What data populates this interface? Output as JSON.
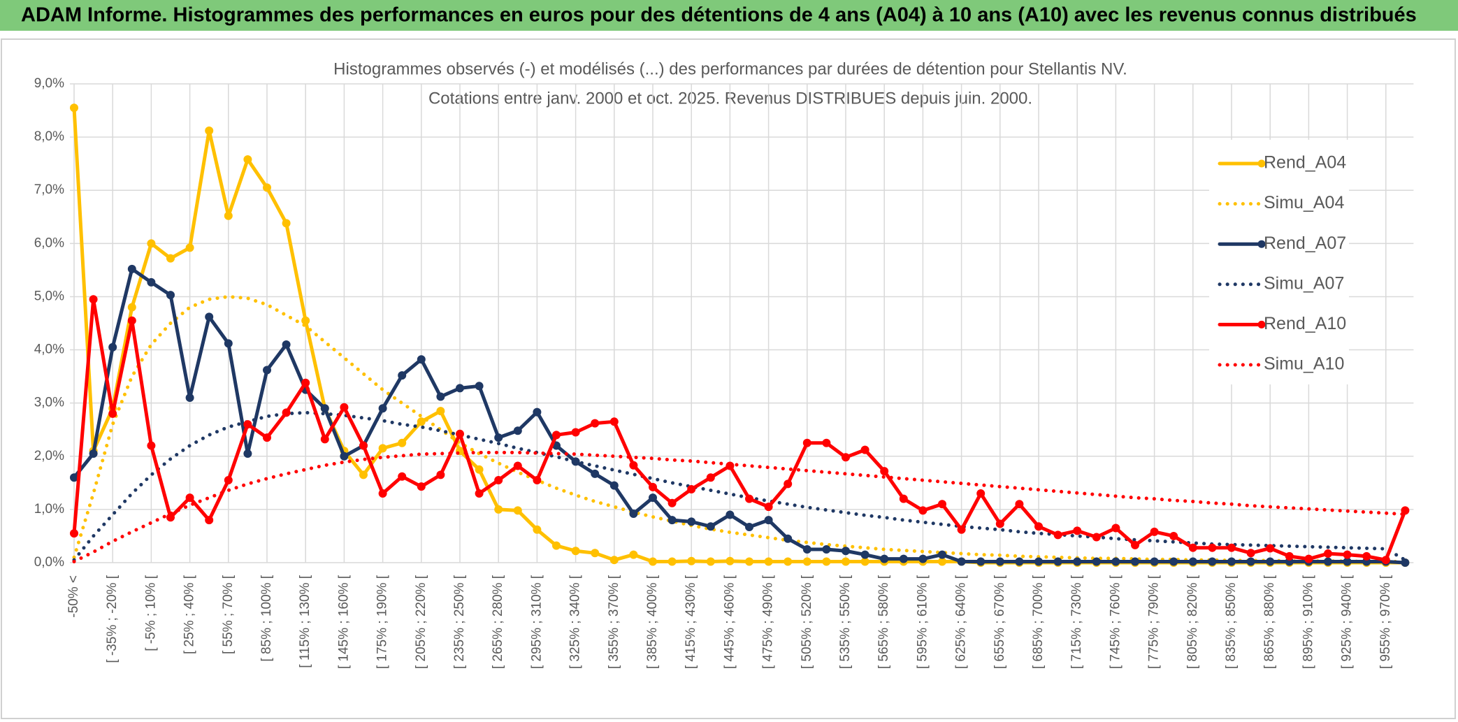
{
  "chart_data": {
    "type": "line",
    "header": "ADAM Informe. Histogrammes des performances en euros pour des détentions de 4 ans (A04) à 10 ans (A10) avec les revenus connus distribués",
    "title": "Histogrammes observés (-) et modélisés (...) des performances par durées de détention pour Stellantis NV.",
    "subtitle": "Cotations entre janv. 2000 et oct. 2025. Revenus DISTRIBUES depuis juin. 2000.",
    "categories": [
      "-50% <",
      null,
      "[ -35% ; -20% [",
      null,
      "[ -5% ; 10% [",
      null,
      "[ 25% ; 40% [",
      null,
      "[ 55% ; 70% [",
      null,
      "[ 85% ; 100% [",
      null,
      "[ 115% ; 130% [",
      null,
      "[ 145% ; 160% [",
      null,
      "[ 175% ; 190% [",
      null,
      "[ 205% ; 220% [",
      null,
      "[ 235% ; 250% [",
      null,
      "[ 265% ; 280% [",
      null,
      "[ 295% ; 310% [",
      null,
      "[ 325% ; 340% [",
      null,
      "[ 355% ; 370% [",
      null,
      "[ 385% ; 400% [",
      null,
      "[ 415% ; 430% [",
      null,
      "[ 445% ; 460% [",
      null,
      "[ 475% ; 490% [",
      null,
      "[ 505% ; 520% [",
      null,
      "[ 535% ; 550% [",
      null,
      "[ 565% ; 580% [",
      null,
      "[ 595% ; 610% [",
      null,
      "[ 625% ; 640% [",
      null,
      "[ 655% ; 670% [",
      null,
      "[ 685% ; 700% [",
      null,
      "[ 715% ; 730% [",
      null,
      "[ 745% ; 760% [",
      null,
      "[ 775% ; 790% [",
      null,
      "[ 805% ; 820% [",
      null,
      "[ 835% ; 850% [",
      null,
      "[ 865% ; 880% [",
      null,
      "[ 895% ; 910% [",
      null,
      "[ 925% ; 940% [",
      null,
      "[ 955% ; 970% [",
      null
    ],
    "ylim": [
      0,
      9
    ],
    "yticks": [
      {
        "value": 0,
        "label": "0,0%"
      },
      {
        "value": 1,
        "label": "1,0%"
      },
      {
        "value": 2,
        "label": "2,0%"
      },
      {
        "value": 3,
        "label": "3,0%"
      },
      {
        "value": 4,
        "label": "4,0%"
      },
      {
        "value": 5,
        "label": "5,0%"
      },
      {
        "value": 6,
        "label": "6,0%"
      },
      {
        "value": 7,
        "label": "7,0%"
      },
      {
        "value": 8,
        "label": "8,0%"
      },
      {
        "value": 9,
        "label": "9,0%"
      }
    ],
    "grid": true,
    "legend": "right",
    "series": [
      {
        "name": "Rend_A04",
        "color": "#ffc000",
        "style": "solid",
        "markers": true,
        "values": [
          8.55,
          2.1,
          2.9,
          4.8,
          6.0,
          5.72,
          5.92,
          8.12,
          6.52,
          7.58,
          7.05,
          6.38,
          4.55,
          2.9,
          2.1,
          1.65,
          2.15,
          2.25,
          2.65,
          2.85,
          2.1,
          1.75,
          1.0,
          0.98,
          0.62,
          0.32,
          0.22,
          0.18,
          0.05,
          0.15,
          0.02,
          0.02,
          0.03,
          0.02,
          0.03,
          0.02,
          0.02,
          0.02,
          0.02,
          0.02,
          0.02,
          0.02,
          0.02,
          0.02,
          0.02,
          0.02,
          0.02,
          0,
          0,
          0,
          0,
          0,
          0,
          0,
          0,
          0,
          0,
          0,
          0,
          0,
          0,
          0,
          0,
          0,
          0,
          0,
          0,
          0,
          0,
          0
        ]
      },
      {
        "name": "Simu_A04",
        "color": "#ffc000",
        "style": "dotted",
        "markers": false,
        "values": [
          0.1,
          1.3,
          2.6,
          3.5,
          4.1,
          4.5,
          4.8,
          4.95,
          5.0,
          4.97,
          4.85,
          4.65,
          4.45,
          4.15,
          3.85,
          3.55,
          3.25,
          3.0,
          2.75,
          2.5,
          2.25,
          2.05,
          1.87,
          1.7,
          1.55,
          1.4,
          1.27,
          1.15,
          1.05,
          0.95,
          0.86,
          0.78,
          0.7,
          0.63,
          0.57,
          0.52,
          0.47,
          0.42,
          0.38,
          0.34,
          0.31,
          0.28,
          0.25,
          0.23,
          0.21,
          0.19,
          0.17,
          0.15,
          0.14,
          0.12,
          0.11,
          0.1,
          0.09,
          0.08,
          0.08,
          0.07,
          0.06,
          0.06,
          0.05,
          0.05,
          0.04,
          0.04,
          0.04,
          0.03,
          0.03,
          0.03,
          0.03,
          0.02,
          0.02,
          0.02
        ]
      },
      {
        "name": "Rend_A07",
        "color": "#1f3864",
        "style": "solid",
        "markers": true,
        "values": [
          1.6,
          2.05,
          4.05,
          5.52,
          5.27,
          5.03,
          3.1,
          4.62,
          4.12,
          2.05,
          3.62,
          4.1,
          3.25,
          2.9,
          2.0,
          2.2,
          2.9,
          3.52,
          3.82,
          3.12,
          3.28,
          3.32,
          2.35,
          2.48,
          2.83,
          2.2,
          1.9,
          1.67,
          1.45,
          0.92,
          1.22,
          0.8,
          0.77,
          0.68,
          0.9,
          0.67,
          0.8,
          0.45,
          0.25,
          0.25,
          0.22,
          0.15,
          0.07,
          0.07,
          0.07,
          0.15,
          0.02,
          0.02,
          0.02,
          0.02,
          0.02,
          0.02,
          0.02,
          0.02,
          0.02,
          0.02,
          0.02,
          0.02,
          0.02,
          0.02,
          0.02,
          0.02,
          0.02,
          0.02,
          0.02,
          0.02,
          0.02,
          0.02,
          0.02,
          0
        ]
      },
      {
        "name": "Simu_A07",
        "color": "#1f3864",
        "style": "dotted",
        "markers": false,
        "values": [
          0.05,
          0.5,
          0.9,
          1.3,
          1.65,
          1.95,
          2.2,
          2.4,
          2.55,
          2.65,
          2.75,
          2.8,
          2.82,
          2.8,
          2.77,
          2.72,
          2.67,
          2.6,
          2.55,
          2.48,
          2.4,
          2.32,
          2.24,
          2.15,
          2.07,
          1.99,
          1.9,
          1.82,
          1.74,
          1.66,
          1.58,
          1.5,
          1.43,
          1.36,
          1.29,
          1.22,
          1.16,
          1.1,
          1.04,
          0.99,
          0.94,
          0.89,
          0.85,
          0.8,
          0.76,
          0.72,
          0.68,
          0.65,
          0.62,
          0.58,
          0.55,
          0.53,
          0.5,
          0.48,
          0.45,
          0.43,
          0.41,
          0.39,
          0.37,
          0.35,
          0.34,
          0.33,
          0.32,
          0.31,
          0.3,
          0.29,
          0.28,
          0.27,
          0.26,
          0.05
        ]
      },
      {
        "name": "Rend_A10",
        "color": "#ff0000",
        "style": "solid",
        "markers": true,
        "values": [
          0.55,
          4.95,
          2.8,
          4.55,
          2.2,
          0.85,
          1.22,
          0.8,
          1.55,
          2.6,
          2.35,
          2.82,
          3.38,
          2.32,
          2.92,
          2.2,
          1.3,
          1.62,
          1.43,
          1.65,
          2.42,
          1.3,
          1.55,
          1.82,
          1.55,
          2.4,
          2.45,
          2.62,
          2.65,
          1.83,
          1.42,
          1.12,
          1.38,
          1.6,
          1.82,
          1.2,
          1.05,
          1.48,
          2.25,
          2.25,
          1.98,
          2.12,
          1.72,
          1.2,
          0.98,
          1.1,
          0.62,
          1.3,
          0.73,
          1.1,
          0.68,
          0.52,
          0.6,
          0.48,
          0.65,
          0.33,
          0.58,
          0.5,
          0.28,
          0.28,
          0.28,
          0.18,
          0.27,
          0.12,
          0.07,
          0.17,
          0.15,
          0.12,
          0.05,
          0.98
        ]
      },
      {
        "name": "Simu_A10",
        "color": "#ff0000",
        "style": "dotted",
        "markers": false,
        "values": [
          0.02,
          0.2,
          0.4,
          0.58,
          0.75,
          0.92,
          1.08,
          1.22,
          1.36,
          1.48,
          1.58,
          1.67,
          1.75,
          1.83,
          1.89,
          1.94,
          1.98,
          2.01,
          2.04,
          2.05,
          2.06,
          2.07,
          2.07,
          2.07,
          2.06,
          2.05,
          2.04,
          2.02,
          2.0,
          1.98,
          1.96,
          1.93,
          1.91,
          1.88,
          1.85,
          1.82,
          1.79,
          1.76,
          1.73,
          1.7,
          1.67,
          1.64,
          1.61,
          1.58,
          1.55,
          1.52,
          1.49,
          1.46,
          1.43,
          1.4,
          1.37,
          1.34,
          1.31,
          1.28,
          1.25,
          1.22,
          1.2,
          1.17,
          1.15,
          1.12,
          1.1,
          1.07,
          1.05,
          1.03,
          1.01,
          0.99,
          0.97,
          0.95,
          0.93,
          0.91
        ]
      }
    ]
  }
}
